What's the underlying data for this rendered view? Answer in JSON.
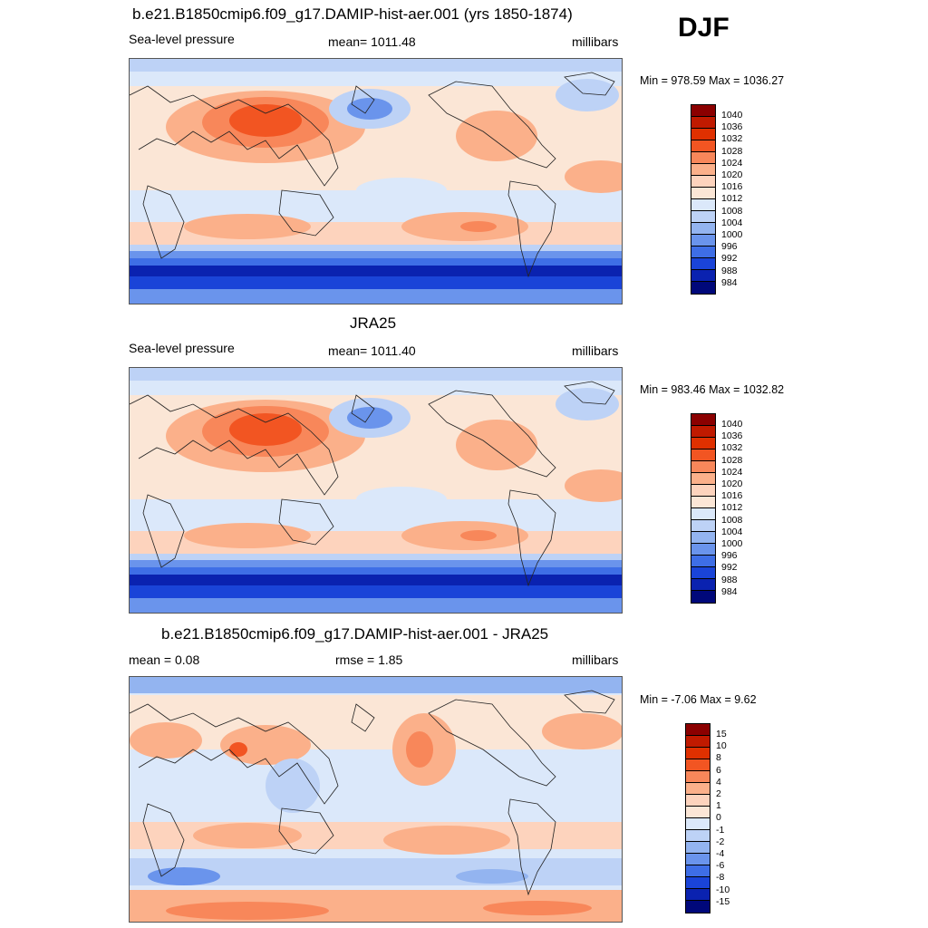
{
  "season": "DJF",
  "panels": [
    {
      "title": "b.e21.B1850cmip6.f09_g17.DAMIP-hist-aer.001 (yrs 1850-1874)",
      "left": "Sea-level pressure",
      "center": "mean= 1011.48",
      "right": "millibars",
      "minmax": "Min = 978.59 Max = 1036.27",
      "kind": "abs",
      "colorbar": {
        "labels": [
          "1040",
          "1036",
          "1032",
          "1028",
          "1024",
          "1020",
          "1016",
          "1012",
          "1008",
          "1004",
          "1000",
          "996",
          "992",
          "988",
          "984"
        ],
        "colors": [
          "#8b0000",
          "#c01a00",
          "#e03000",
          "#f25522",
          "#f8875a",
          "#fbb08a",
          "#fdd3bd",
          "#fbe6d6",
          "#dbe8fa",
          "#bdd2f6",
          "#93b4f0",
          "#6a94ec",
          "#3e6ee6",
          "#1a44d8",
          "#0a22b0",
          "#00087a"
        ]
      }
    },
    {
      "title": "JRA25",
      "left": "Sea-level pressure",
      "center": "mean= 1011.40",
      "right": "millibars",
      "minmax": "Min = 983.46 Max = 1032.82",
      "kind": "abs",
      "colorbar": {
        "labels": [
          "1040",
          "1036",
          "1032",
          "1028",
          "1024",
          "1020",
          "1016",
          "1012",
          "1008",
          "1004",
          "1000",
          "996",
          "992",
          "988",
          "984"
        ],
        "colors": [
          "#8b0000",
          "#c01a00",
          "#e03000",
          "#f25522",
          "#f8875a",
          "#fbb08a",
          "#fdd3bd",
          "#fbe6d6",
          "#dbe8fa",
          "#bdd2f6",
          "#93b4f0",
          "#6a94ec",
          "#3e6ee6",
          "#1a44d8",
          "#0a22b0",
          "#00087a"
        ]
      }
    },
    {
      "title": "b.e21.B1850cmip6.f09_g17.DAMIP-hist-aer.001 - JRA25",
      "left": "mean =   0.08",
      "center": "rmse =    1.85",
      "right": "millibars",
      "minmax": "Min =  -7.06 Max =   9.62",
      "kind": "diff",
      "colorbar": {
        "labels": [
          "15",
          "10",
          "8",
          "6",
          "4",
          "2",
          "1",
          "0",
          "-1",
          "-2",
          "-4",
          "-6",
          "-8",
          "-10",
          "-15"
        ],
        "colors": [
          "#8b0000",
          "#c01a00",
          "#e03000",
          "#f25522",
          "#f8875a",
          "#fbb08a",
          "#fdd3bd",
          "#fbe6d6",
          "#dbe8fa",
          "#bdd2f6",
          "#93b4f0",
          "#6a94ec",
          "#3e6ee6",
          "#1a44d8",
          "#0a22b0",
          "#00087a"
        ]
      }
    }
  ]
}
